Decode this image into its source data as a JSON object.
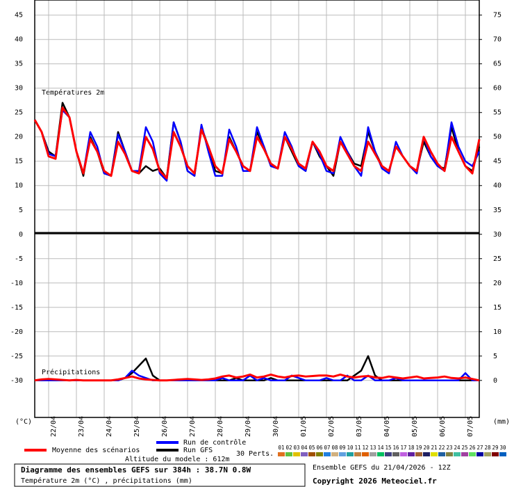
{
  "chart_data": {
    "type": "line",
    "temp_label": "Températures 2m",
    "precip_label": "Précipitations",
    "y_unit": "(°C)",
    "y2_unit": "(mm)",
    "categories": [
      null,
      null,
      "22/04",
      null,
      null,
      null,
      "23/04",
      null,
      null,
      null,
      "24/04",
      null,
      null,
      null,
      "25/04",
      null,
      null,
      null,
      "26/04",
      null,
      null,
      null,
      "27/04",
      null,
      null,
      null,
      "28/04",
      null,
      null,
      null,
      "29/04",
      null,
      null,
      null,
      "30/04",
      null,
      null,
      null,
      "01/05",
      null,
      null,
      null,
      "02/05",
      null,
      null,
      null,
      "03/05",
      null,
      null,
      null,
      "04/05",
      null,
      null,
      null,
      "05/05",
      null,
      null,
      null,
      "06/05",
      null,
      null,
      null,
      "07/05",
      null,
      null
    ],
    "ylim": [
      -37.6,
      48.1
    ],
    "yticks": [
      45,
      40,
      35,
      30,
      25,
      20,
      15,
      10,
      5,
      0,
      -5,
      -10,
      -15,
      -20,
      -25,
      -30
    ],
    "y2lim": [
      -7.6,
      78.1
    ],
    "y2ticks": [
      75,
      70,
      65,
      60,
      55,
      50,
      45,
      40,
      35,
      30,
      25,
      20,
      15,
      10,
      5,
      0
    ],
    "grid": true,
    "series": [
      {
        "name": "Moyenne des scénarios",
        "color": "#ff0000",
        "values": [
          23.5,
          21,
          16,
          15.5,
          26,
          24,
          17,
          12.5,
          19.5,
          17,
          13,
          12,
          19,
          16.5,
          13,
          12.5,
          20,
          17.5,
          13,
          11.5,
          21,
          18,
          14,
          12.5,
          21.5,
          18,
          14,
          12.5,
          19.5,
          17,
          14,
          13,
          20,
          17.5,
          14.5,
          13.5,
          20,
          17.5,
          14.5,
          13.5,
          19,
          17,
          14,
          13,
          19,
          16.5,
          14,
          13,
          19,
          16.5,
          14,
          13,
          18,
          16,
          14,
          13,
          20,
          17,
          14.5,
          13,
          20,
          17,
          14,
          12.5,
          19.5
        ],
        "precip": [
          0,
          0.2,
          0.3,
          0.2,
          0.1,
          0,
          0.1,
          0,
          0,
          0,
          0,
          0,
          0.2,
          0.5,
          0.8,
          0.4,
          0.2,
          0.1,
          0,
          0,
          0.1,
          0.2,
          0.3,
          0.2,
          0.1,
          0.2,
          0.4,
          0.8,
          1,
          0.6,
          0.8,
          1.2,
          0.6,
          0.8,
          1.2,
          0.8,
          0.6,
          0.9,
          1,
          0.8,
          0.9,
          1,
          1,
          0.8,
          1.2,
          0.8,
          0.6,
          0.8,
          0.9,
          0.6,
          0.5,
          0.8,
          0.6,
          0.4,
          0.6,
          0.8,
          0.4,
          0.5,
          0.6,
          0.8,
          0.5,
          0.4,
          0.6,
          0.3,
          0
        ]
      },
      {
        "name": "Run de contrôle",
        "color": "#0000ff",
        "values": [
          23.5,
          21,
          16.5,
          16,
          25.5,
          24,
          17,
          12.5,
          21,
          18,
          12.5,
          12,
          20.5,
          17,
          13,
          13,
          22,
          19,
          12.5,
          11,
          23,
          19,
          13,
          12,
          22.5,
          17,
          12,
          12,
          21.5,
          18,
          13,
          13,
          22,
          18,
          14,
          13.5,
          21,
          18,
          14,
          13,
          19,
          16.5,
          13,
          12.5,
          20,
          17,
          14,
          12,
          22,
          17,
          13.5,
          12.5,
          19,
          16,
          14,
          12.5,
          20,
          16,
          14,
          13,
          23,
          18,
          15,
          14,
          17
        ],
        "precip": [
          0,
          0,
          0,
          0,
          0,
          0,
          0,
          0,
          0,
          0,
          0,
          0,
          0,
          0.5,
          2,
          1,
          0.5,
          0,
          0,
          0,
          0,
          0,
          0,
          0,
          0,
          0,
          0,
          0.5,
          0,
          0,
          0,
          1,
          0,
          0.5,
          0,
          0,
          0,
          1,
          0.5,
          0,
          0,
          0,
          0.5,
          0,
          0,
          1,
          0,
          0,
          1,
          0,
          0,
          0,
          0.5,
          0,
          0,
          0,
          0,
          0,
          0,
          0,
          0,
          0,
          1.5,
          0,
          0
        ]
      },
      {
        "name": "Run GFS",
        "color": "#000000",
        "values": [
          23.5,
          21,
          17,
          16,
          27,
          24,
          17,
          12,
          20,
          17,
          12.5,
          12,
          21,
          17,
          13,
          12.5,
          14,
          13,
          13.5,
          11.5,
          23,
          19,
          13,
          12,
          22,
          18,
          13,
          12.5,
          20,
          17,
          14,
          13,
          21,
          18,
          14,
          13.5,
          20,
          17,
          14,
          13,
          19,
          16,
          14,
          12,
          19,
          17,
          14.5,
          14,
          21,
          17,
          14,
          13,
          18,
          16,
          14,
          13,
          19,
          16,
          14,
          13.5,
          22,
          17,
          14,
          13,
          18
        ],
        "precip": [
          0,
          0,
          0,
          0,
          0,
          0,
          0,
          0,
          0,
          0,
          0,
          0,
          0,
          0.5,
          1.5,
          3,
          4.5,
          1,
          0,
          0,
          0,
          0,
          0,
          0,
          0,
          0,
          0,
          0,
          0,
          0.5,
          0,
          0,
          0,
          0,
          0.5,
          0,
          0,
          0,
          0,
          0,
          0,
          0,
          0,
          0,
          0,
          0,
          1,
          2,
          5,
          1,
          0,
          0,
          0,
          0,
          0,
          0,
          0,
          0,
          0,
          0,
          0,
          0,
          0,
          0,
          0
        ]
      }
    ],
    "perturbations": {
      "label": "30 Perts.",
      "members": [
        {
          "name": "01",
          "color": "#e07020"
        },
        {
          "name": "02",
          "color": "#60c040"
        },
        {
          "name": "03",
          "color": "#e0c000"
        },
        {
          "name": "04",
          "color": "#8060c0"
        },
        {
          "name": "05",
          "color": "#a05000"
        },
        {
          "name": "06",
          "color": "#808000"
        },
        {
          "name": "07",
          "color": "#2080e0"
        },
        {
          "name": "08",
          "color": "#d0b080"
        },
        {
          "name": "09",
          "color": "#60a0e0"
        },
        {
          "name": "10",
          "color": "#20a0a0"
        },
        {
          "name": "11",
          "color": "#c08040"
        },
        {
          "name": "12",
          "color": "#e06000"
        },
        {
          "name": "13",
          "color": "#a0a0a0"
        },
        {
          "name": "14",
          "color": "#00c060"
        },
        {
          "name": "15",
          "color": "#404080"
        },
        {
          "name": "16",
          "color": "#606060"
        },
        {
          "name": "17",
          "color": "#c060e0"
        },
        {
          "name": "18",
          "color": "#6020a0"
        },
        {
          "name": "19",
          "color": "#a06030"
        },
        {
          "name": "20",
          "color": "#202060"
        },
        {
          "name": "21",
          "color": "#e0e000"
        },
        {
          "name": "22",
          "color": "#2060a0"
        },
        {
          "name": "23",
          "color": "#808040"
        },
        {
          "name": "24",
          "color": "#40c0a0"
        },
        {
          "name": "25",
          "color": "#a040a0"
        },
        {
          "name": "26",
          "color": "#60e060"
        },
        {
          "name": "27",
          "color": "#0000a0"
        },
        {
          "name": "28",
          "color": "#a0a060"
        },
        {
          "name": "29",
          "color": "#800000"
        },
        {
          "name": "30",
          "color": "#0060c0"
        }
      ]
    },
    "altitude": "Altitude du modele : 612m",
    "footer": {
      "title": "Diagramme des ensembles GEFS sur 384h : 38.7N 0.8W",
      "subtitle": "Température 2m (°C) , précipitations (mm)",
      "run": "Ensemble GEFS du 21/04/2026 - 12Z",
      "copyright": "Copyright 2026 Meteociel.fr"
    }
  }
}
